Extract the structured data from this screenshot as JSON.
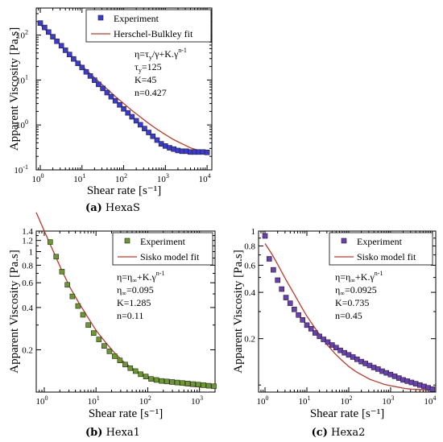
{
  "chart_data": [
    {
      "type": "scatter",
      "panel": "a",
      "caption_label": "(a)",
      "caption_text": "HexaS",
      "xlabel": "Shear rate [s⁻¹]",
      "ylabel": "Apparent Viscosity [Pa.s]",
      "xscale": "log",
      "yscale": "log",
      "xlim": [
        0.8,
        13000
      ],
      "ylim": [
        0.1,
        400
      ],
      "x_ticks": [
        {
          "v": 1,
          "b": "10",
          "e": "0"
        },
        {
          "v": 10,
          "b": "10",
          "e": "1"
        },
        {
          "v": 100,
          "b": "10",
          "e": "2"
        },
        {
          "v": 1000,
          "b": "10",
          "e": "3"
        },
        {
          "v": 10000,
          "b": "10",
          "e": "4"
        }
      ],
      "y_ticks": [
        {
          "v": 0.1,
          "b": "10",
          "e": "-1"
        },
        {
          "v": 1,
          "b": "10",
          "e": "0"
        },
        {
          "v": 10,
          "b": "10",
          "e": "1"
        },
        {
          "v": 100,
          "b": "10",
          "e": "2"
        }
      ],
      "legend_placement": "top-right",
      "colors": {
        "marker": "#3a3ad6",
        "line": "#c0392b"
      },
      "series": [
        {
          "name": "Experiment",
          "kind": "markers",
          "x": [
            1,
            1.27,
            1.58,
            2,
            2.5,
            3.2,
            4,
            5,
            6.3,
            8,
            10,
            12.6,
            15.8,
            20,
            25,
            31.6,
            40,
            50,
            63,
            80,
            100,
            126,
            158,
            200,
            251,
            316,
            398,
            501,
            631,
            794,
            1000,
            1259,
            1585,
            1995,
            2512,
            3162,
            3981,
            5012,
            6310,
            7943,
            10000
          ],
          "y": [
            185,
            148,
            117,
            92,
            73,
            58,
            46,
            37,
            29.5,
            23.5,
            19,
            15.2,
            12.3,
            9.9,
            8,
            6.5,
            5.25,
            4.25,
            3.45,
            2.8,
            2.28,
            1.86,
            1.52,
            1.24,
            1.01,
            0.83,
            0.68,
            0.56,
            0.46,
            0.38,
            0.34,
            0.31,
            0.29,
            0.27,
            0.26,
            0.26,
            0.25,
            0.25,
            0.25,
            0.25,
            0.245
          ]
        },
        {
          "name": "Herschel-Bulkley fit",
          "kind": "line",
          "x": [
            1,
            1.58,
            2.5,
            4,
            6.3,
            10,
            15.8,
            25,
            40,
            63,
            100,
            158,
            251,
            398,
            631,
            1000,
            1585,
            2512,
            3981,
            6310,
            10000
          ],
          "y": [
            170,
            111,
            73,
            47,
            31,
            20.5,
            13.8,
            9.3,
            6.3,
            4.3,
            3.0,
            2.1,
            1.5,
            1.08,
            0.8,
            0.61,
            0.47,
            0.38,
            0.31,
            0.27,
            0.245
          ]
        }
      ],
      "annotation": [
        {
          "base": "η=τ",
          "sub": "y",
          "mid": "/γ+K.γ",
          "sup": "n-1"
        },
        {
          "base": "τ",
          "sub": "y",
          "mid": "=125",
          "sup": ""
        },
        {
          "base": "K=45",
          "sub": "",
          "mid": "",
          "sup": ""
        },
        {
          "base": "n=0.427",
          "sub": "",
          "mid": "",
          "sup": ""
        }
      ]
    },
    {
      "type": "scatter",
      "panel": "b",
      "caption_label": "(b)",
      "caption_text": "Hexa1",
      "xlabel": "Shear rate [s⁻¹]",
      "ylabel": "Apparent Viscosity [Pa.s]",
      "xscale": "log",
      "yscale": "log",
      "xlim": [
        0.7,
        2000
      ],
      "ylim": [
        0.1,
        1.4
      ],
      "x_ticks": [
        {
          "v": 1,
          "b": "10",
          "e": "0"
        },
        {
          "v": 10,
          "b": "10",
          "e": "1"
        },
        {
          "v": 100,
          "b": "10",
          "e": "2"
        },
        {
          "v": 1000,
          "b": "10",
          "e": "3"
        }
      ],
      "y_ticks": [
        {
          "v": 0.2,
          "b": "0.2",
          "e": ""
        },
        {
          "v": 0.4,
          "b": "0.4",
          "e": ""
        },
        {
          "v": 0.6,
          "b": "0.6",
          "e": ""
        },
        {
          "v": 0.8,
          "b": "0.8",
          "e": ""
        },
        {
          "v": 1,
          "b": "1",
          "e": ""
        },
        {
          "v": 1.2,
          "b": "1.2",
          "e": ""
        },
        {
          "v": 1.4,
          "b": "1.4",
          "e": ""
        }
      ],
      "legend_placement": "top-right",
      "colors": {
        "marker": "#6a9a2a",
        "line": "#c0392b"
      },
      "series": [
        {
          "name": "Experiment",
          "kind": "markers",
          "x": [
            1.3,
            1.7,
            2.2,
            2.8,
            3.5,
            4.5,
            5.6,
            7.1,
            9,
            11.4,
            14.4,
            18.2,
            23,
            29,
            36.7,
            46,
            58,
            73,
            92,
            116,
            147,
            185,
            234,
            295,
            372,
            470,
            593,
            749,
            945,
            1193,
            1505,
            1900
          ],
          "y": [
            1.17,
            0.92,
            0.72,
            0.58,
            0.48,
            0.41,
            0.355,
            0.3,
            0.263,
            0.237,
            0.213,
            0.195,
            0.18,
            0.168,
            0.157,
            0.148,
            0.141,
            0.134,
            0.129,
            0.124,
            0.122,
            0.12,
            0.119,
            0.118,
            0.117,
            0.116,
            0.115,
            0.114,
            0.113,
            0.112,
            0.111,
            0.11
          ]
        },
        {
          "name": "Sisko model fit",
          "kind": "line",
          "x": [
            0.7,
            1,
            1.5,
            2.2,
            3.2,
            4.7,
            7,
            10,
            15,
            22,
            32,
            47,
            70,
            100,
            150,
            220,
            320,
            470,
            700,
            1000,
            1500,
            2000
          ],
          "y": [
            1.9,
            1.4,
            1.0,
            0.73,
            0.55,
            0.43,
            0.34,
            0.275,
            0.228,
            0.193,
            0.168,
            0.15,
            0.137,
            0.128,
            0.121,
            0.117,
            0.114,
            0.112,
            0.11,
            0.109,
            0.108,
            0.108
          ]
        }
      ],
      "annotation": [
        {
          "base": "η=η",
          "sub": "∞",
          "mid": "+K.γ",
          "sup": "n-1"
        },
        {
          "base": "η",
          "sub": "∞",
          "mid": "=0.095",
          "sup": ""
        },
        {
          "base": "K=1.285",
          "sub": "",
          "mid": "",
          "sup": ""
        },
        {
          "base": "n=0.11",
          "sub": "",
          "mid": "",
          "sup": ""
        }
      ]
    },
    {
      "type": "scatter",
      "panel": "c",
      "caption_label": "(c)",
      "caption_text": "Hexa2",
      "xlabel": "Shear rate [s⁻¹]",
      "ylabel": "Apparent Viscosity [Pa.s]",
      "xscale": "log",
      "yscale": "log",
      "xlim": [
        0.7,
        12000
      ],
      "ylim": [
        0.09,
        1.0
      ],
      "x_ticks": [
        {
          "v": 1,
          "b": "10",
          "e": "0"
        },
        {
          "v": 10,
          "b": "10",
          "e": "1"
        },
        {
          "v": 100,
          "b": "10",
          "e": "2"
        },
        {
          "v": 1000,
          "b": "10",
          "e": "3"
        },
        {
          "v": 10000,
          "b": "10",
          "e": "4"
        }
      ],
      "y_ticks": [
        {
          "v": 0.2,
          "b": "0.2",
          "e": ""
        },
        {
          "v": 0.4,
          "b": "0.4",
          "e": ""
        },
        {
          "v": 0.6,
          "b": "0.6",
          "e": ""
        },
        {
          "v": 0.8,
          "b": "0.8",
          "e": ""
        },
        {
          "v": 1,
          "b": "1",
          "e": ""
        }
      ],
      "legend_placement": "top-right",
      "colors": {
        "marker": "#6a3fb5",
        "line": "#c0392b"
      },
      "series": [
        {
          "name": "Experiment",
          "kind": "markers",
          "x": [
            1,
            1.26,
            1.58,
            2,
            2.5,
            3.16,
            3.98,
            5,
            6.3,
            7.9,
            10,
            12.6,
            15.8,
            20,
            25,
            31.6,
            40,
            50,
            63,
            79,
            100,
            126,
            158,
            200,
            251,
            316,
            398,
            501,
            631,
            794,
            1000,
            1259,
            1585,
            1995,
            2512,
            3162,
            3981,
            5012,
            6310,
            7943,
            10000
          ],
          "y": [
            0.93,
            0.66,
            0.56,
            0.48,
            0.42,
            0.37,
            0.34,
            0.31,
            0.285,
            0.265,
            0.245,
            0.232,
            0.218,
            0.207,
            0.198,
            0.19,
            0.182,
            0.175,
            0.168,
            0.162,
            0.157,
            0.152,
            0.147,
            0.142,
            0.138,
            0.134,
            0.13,
            0.127,
            0.123,
            0.12,
            0.117,
            0.114,
            0.111,
            0.108,
            0.106,
            0.104,
            0.102,
            0.1,
            0.098,
            0.096,
            0.094
          ]
        },
        {
          "name": "Sisko model fit",
          "kind": "line",
          "x": [
            1,
            1.5,
            2.2,
            3.2,
            4.7,
            7,
            10,
            15,
            22,
            32,
            47,
            70,
            100,
            150,
            220,
            320,
            470,
            700,
            1000,
            1500,
            2200,
            3200,
            4700,
            7000,
            10000
          ],
          "y": [
            0.83,
            0.7,
            0.58,
            0.48,
            0.4,
            0.33,
            0.28,
            0.238,
            0.205,
            0.18,
            0.16,
            0.144,
            0.132,
            0.122,
            0.115,
            0.109,
            0.105,
            0.101,
            0.099,
            0.097,
            0.095,
            0.094,
            0.0935,
            0.093,
            0.0925
          ]
        }
      ],
      "annotation": [
        {
          "base": "η=η",
          "sub": "∞",
          "mid": "+K.γ",
          "sup": "n-1"
        },
        {
          "base": "η",
          "sub": "∞",
          "mid": "=0.0925",
          "sup": ""
        },
        {
          "base": "K=0.735",
          "sub": "",
          "mid": "",
          "sup": ""
        },
        {
          "base": "n=0.45",
          "sub": "",
          "mid": "",
          "sup": ""
        }
      ]
    }
  ]
}
